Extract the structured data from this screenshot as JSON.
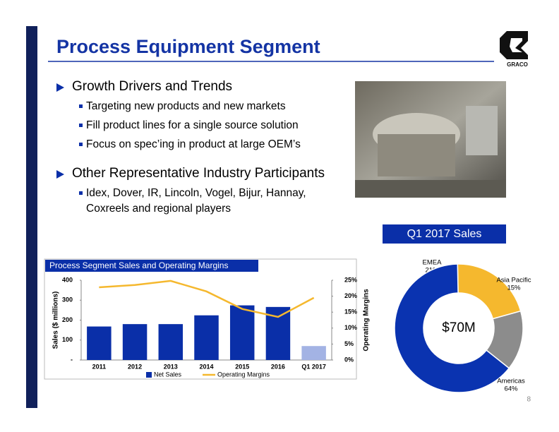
{
  "title": "Process Equipment Segment",
  "logo": "GRACO",
  "bullets": [
    {
      "text": "Growth Drivers and Trends",
      "sub": [
        "Targeting new products and new markets",
        "Fill product lines for a single source solution",
        "Focus on spec’ing in product at large OEM’s"
      ]
    },
    {
      "text": "Other Representative Industry Participants",
      "sub": [
        "Idex, Dover, IR, Lincoln, Vogel, Bijur, Hannay, Coxreels and regional players"
      ]
    }
  ],
  "page_number": "8",
  "chart_data": [
    {
      "type": "bar",
      "title": "Process Segment Sales and Operating Margins",
      "categories": [
        "2011",
        "2012",
        "2013",
        "2014",
        "2015",
        "2016",
        "Q1 2017"
      ],
      "series": [
        {
          "name": "Net Sales",
          "type": "bar",
          "color": "#0a2fa8",
          "point_colors": [
            "#0a2fa8",
            "#0a2fa8",
            "#0a2fa8",
            "#0a2fa8",
            "#0a2fa8",
            "#0a2fa8",
            "#a3b3e4"
          ],
          "values": [
            168,
            180,
            180,
            224,
            274,
            266,
            70
          ]
        },
        {
          "name": "Operating Margins",
          "type": "line",
          "color": "#f5b82e",
          "axis": "y2",
          "values": [
            22.8,
            23.5,
            24.8,
            21.5,
            16,
            13.5,
            19.5
          ]
        }
      ],
      "ylabel": "Sales ($ millions)",
      "y2label": "Operating Margins",
      "ylim": [
        0,
        400
      ],
      "yticks": [
        {
          "value": 0,
          "label": "-"
        },
        100,
        200,
        300,
        400
      ],
      "y2lim": [
        0,
        25
      ],
      "y2ticks": [
        {
          "value": 0,
          "label": "0%"
        },
        {
          "value": 5,
          "label": "5%"
        },
        {
          "value": 10,
          "label": "10%"
        },
        {
          "value": 15,
          "label": "15%"
        },
        {
          "value": 20,
          "label": "20%"
        },
        {
          "value": 25,
          "label": "25%"
        }
      ],
      "legend": "bottom"
    },
    {
      "type": "pie",
      "title": "Q1 2017 Sales",
      "categories": [
        "EMEA",
        "Asia Pacific",
        "Americas"
      ],
      "values": [
        21,
        15,
        64
      ],
      "value_labels": [
        "21%",
        "15%",
        "64%"
      ],
      "colors": [
        "#f5b82e",
        "#8c8c8c",
        "#0a33b0"
      ],
      "center_label": "$70M",
      "donut": true
    }
  ]
}
